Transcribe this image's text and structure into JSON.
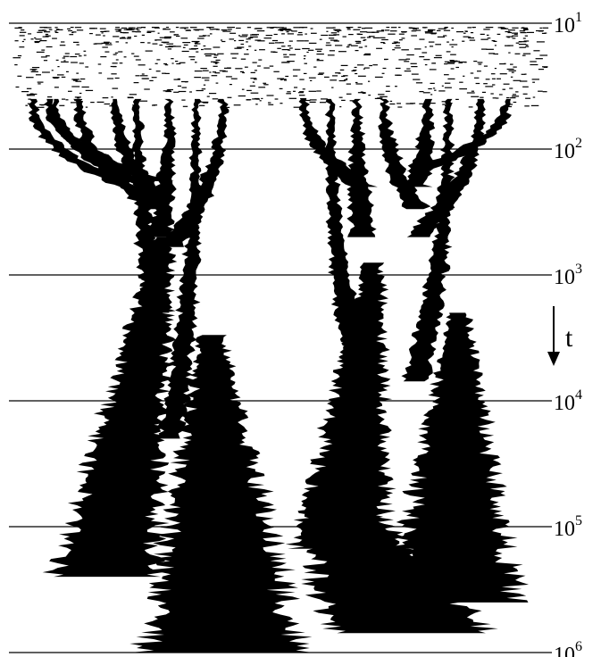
{
  "time_axis": {
    "scale": "log",
    "direction": "downward",
    "ticks": [
      {
        "base": "10",
        "exp": "1",
        "value": 10
      },
      {
        "base": "10",
        "exp": "2",
        "value": 100
      },
      {
        "base": "10",
        "exp": "3",
        "value": 1000
      },
      {
        "base": "10",
        "exp": "4",
        "value": 10000
      },
      {
        "base": "10",
        "exp": "5",
        "value": 100000
      },
      {
        "base": "10",
        "exp": "6",
        "value": 1000000
      }
    ],
    "arrow_label": "t"
  },
  "colors": {
    "ink": "#000000",
    "background": "#ffffff"
  },
  "branches": [
    {
      "x0": 0.045,
      "t_merge": 250,
      "into": "first"
    },
    {
      "x0": 0.085,
      "t_merge": 220,
      "into": "first"
    },
    {
      "x0": 0.075,
      "t_merge": 180,
      "into": "first"
    },
    {
      "x0": 0.13,
      "t_merge": 300,
      "into": "first"
    },
    {
      "x0": 0.2,
      "t_merge": 250,
      "into": "first"
    },
    {
      "x0": 0.24,
      "t_merge": 2000,
      "into": "first"
    },
    {
      "x0": 0.3,
      "t_merge": 500,
      "into": "first"
    },
    {
      "x0": 0.35,
      "t_merge": 20000,
      "into": "second"
    },
    {
      "x0": 0.4,
      "t_merge": 600,
      "into": "second"
    },
    {
      "x0": 0.55,
      "t_merge": 200,
      "into": "third"
    },
    {
      "x0": 0.6,
      "t_merge": 9000,
      "into": "third"
    },
    {
      "x0": 0.65,
      "t_merge": 500,
      "into": "third"
    },
    {
      "x0": 0.7,
      "t_merge": 300,
      "into": "fourth"
    },
    {
      "x0": 0.78,
      "t_merge": 200,
      "into": "fourth"
    },
    {
      "x0": 0.82,
      "t_merge": 7000,
      "into": "fourth"
    },
    {
      "x0": 0.88,
      "t_merge": 500,
      "into": "fourth"
    },
    {
      "x0": 0.93,
      "t_merge": 150,
      "into": "fourth"
    }
  ]
}
